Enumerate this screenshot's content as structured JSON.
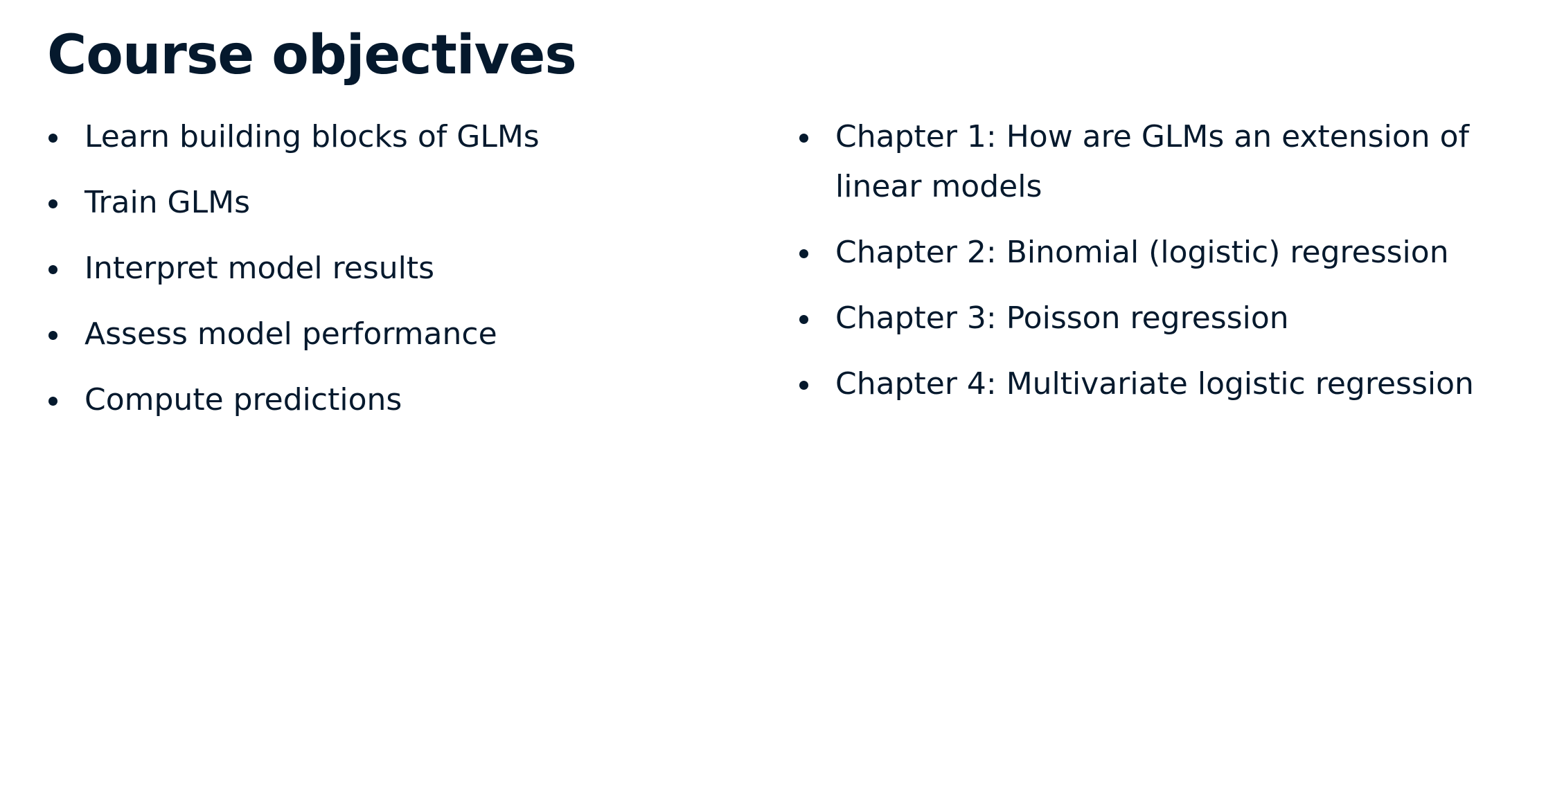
{
  "title": "Course objectives",
  "left_items": [
    "Learn building blocks of GLMs",
    "Train GLMs",
    "Interpret model results",
    "Assess model performance",
    "Compute predictions"
  ],
  "right_items": [
    "Chapter 1: How are GLMs an extension of linear models",
    "Chapter 2: Binomial (logistic) regression",
    "Chapter 3: Poisson regression",
    "Chapter 4: Multivariate logistic regression"
  ],
  "colors": {
    "text": "#05192d",
    "background": "#ffffff"
  }
}
